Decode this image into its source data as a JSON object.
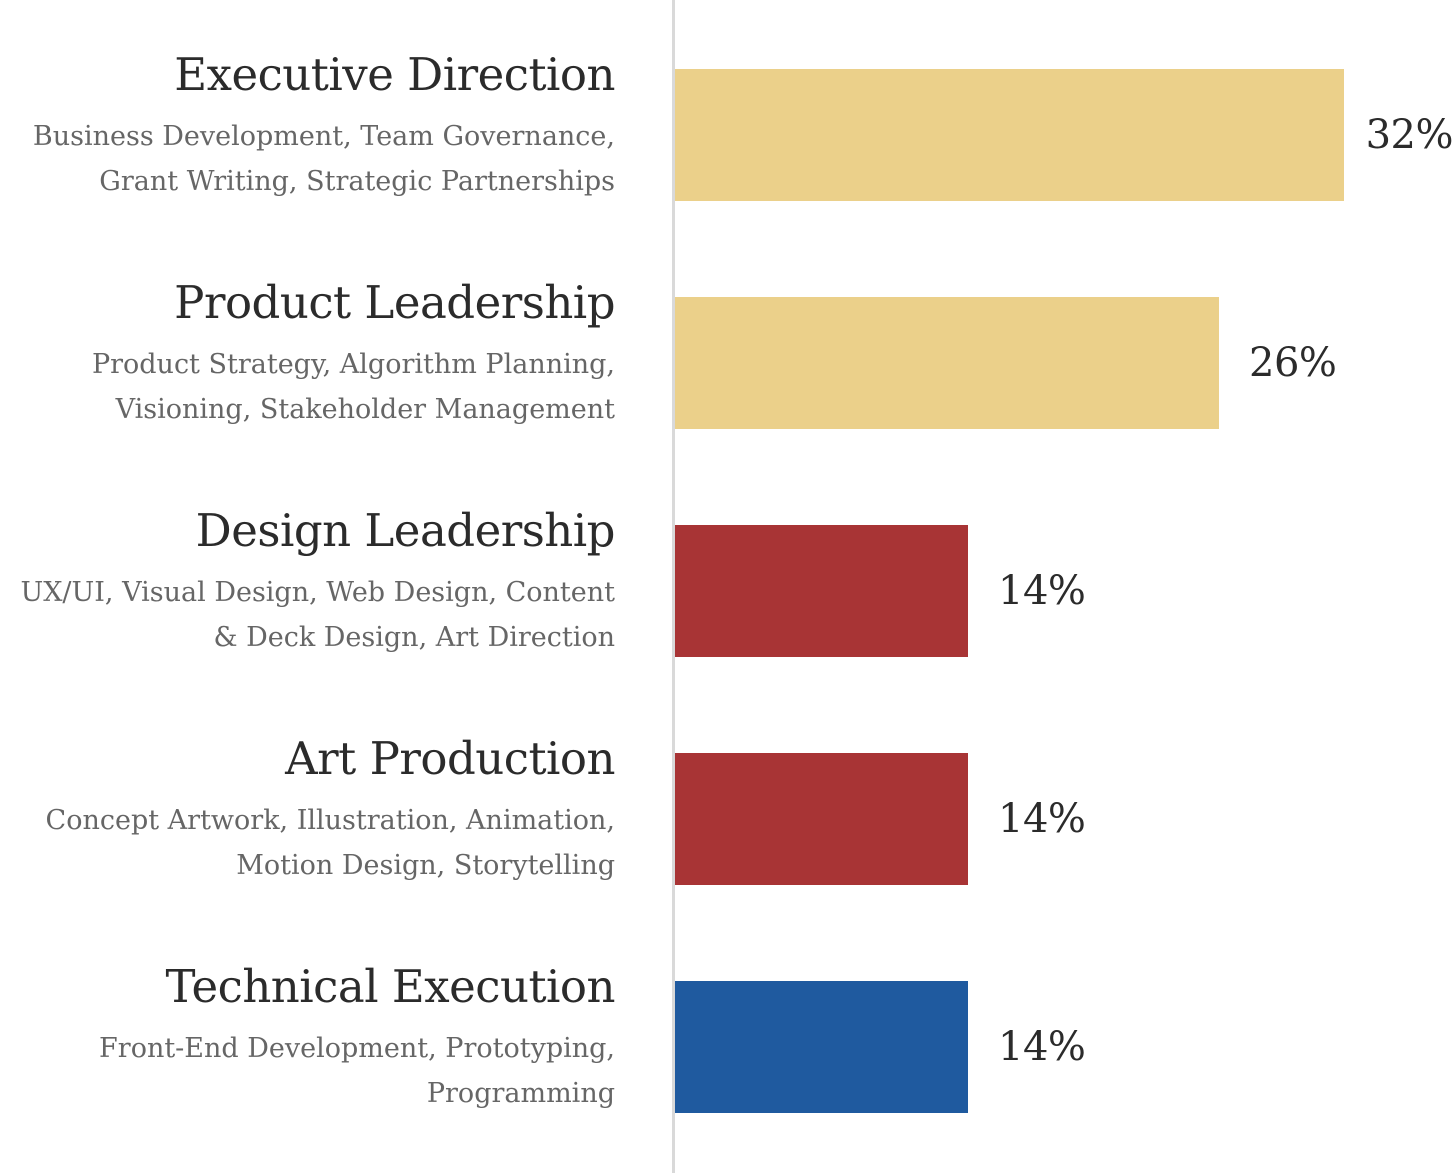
{
  "chart_data": {
    "type": "bar",
    "orientation": "horizontal",
    "title": "",
    "xlabel": "",
    "ylabel": "",
    "categories": [
      "Executive Direction",
      "Product Leadership",
      "Design Leadership",
      "Art Production",
      "Technical Execution"
    ],
    "descriptions": [
      "Business Development, Team Governance, Grant Writing, Strategic Partnerships",
      "Product Strategy, Algorithm Planning, Visioning, Stakeholder Management",
      "UX/UI, Visual Design, Web Design, Content & Deck Design, Art Direction",
      "Concept Artwork, Illustration, Animation, Motion Design, Storytelling",
      "Front-End Development, Prototyping, Programming"
    ],
    "values": [
      32,
      26,
      14,
      14,
      14
    ],
    "value_labels": [
      "32%",
      "26%",
      "14%",
      "14%",
      "14%"
    ],
    "colors": [
      "#ebd08a",
      "#ebd08a",
      "#a83435",
      "#a83435",
      "#1f5a9f"
    ],
    "xlim": [
      0,
      36
    ],
    "grid": false,
    "legend": "none"
  }
}
